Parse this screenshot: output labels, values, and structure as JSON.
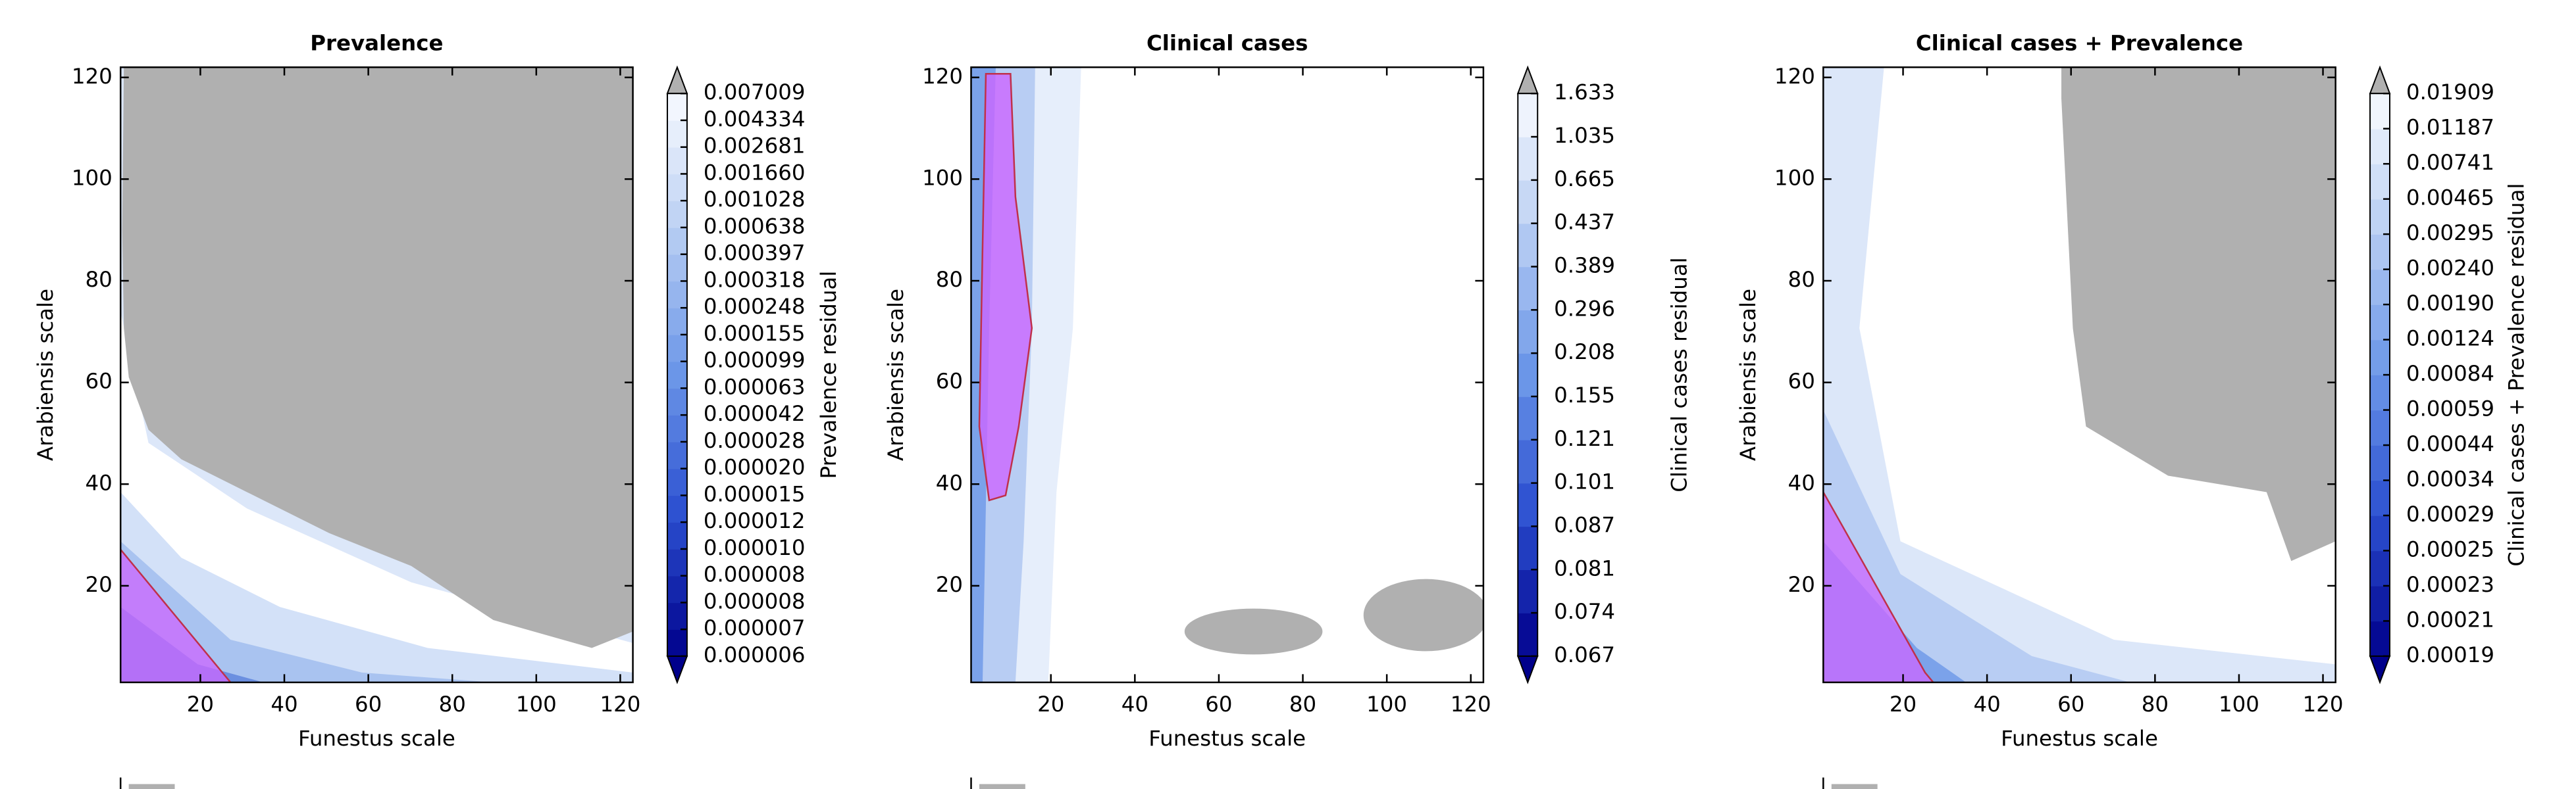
{
  "chart_data": [
    {
      "type": "contour",
      "title": "Prevalence",
      "x_label": "Funestus scale",
      "y_label": "Arabiensis scale",
      "xlim": [
        1,
        123
      ],
      "ylim": [
        1,
        122
      ],
      "xticks": [
        20,
        40,
        60,
        80,
        100,
        120
      ],
      "yticks": [
        20,
        40,
        60,
        80,
        100,
        120
      ],
      "colorbar_label": "Prevalence residual",
      "colorbar_ticks": [
        6e-06,
        7e-06,
        8e-06,
        8e-06,
        {
          "value": 1e-05,
          "label": "0.000010"
        },
        1.2e-05,
        1.5e-05,
        {
          "value": 2e-05,
          "label": "0.000020"
        },
        2.8e-05,
        4.2e-05,
        6.3e-05,
        9.9e-05,
        0.000155,
        0.000248,
        0.000318,
        0.000397,
        0.000638,
        0.001028,
        {
          "value": 0.00166,
          "label": "0.001660"
        },
        0.002681,
        0.004334,
        0.007009
      ]
    },
    {
      "type": "contour",
      "title": "Clinical cases",
      "x_label": "Funestus scale",
      "y_label": "Arabiensis scale",
      "xlim": [
        1,
        123
      ],
      "ylim": [
        1,
        122
      ],
      "xticks": [
        20,
        40,
        60,
        80,
        100,
        120
      ],
      "yticks": [
        20,
        40,
        60,
        80,
        100,
        120
      ],
      "colorbar_label": "Clinical cases residual",
      "colorbar_ticks": [
        0.067,
        0.074,
        0.081,
        0.087,
        0.101,
        0.121,
        0.155,
        0.208,
        0.296,
        0.389,
        0.437,
        0.665,
        1.035,
        1.633
      ]
    },
    {
      "type": "contour",
      "title": "Clinical cases + Prevalence",
      "x_label": "Funestus scale",
      "y_label": "Arabiensis scale",
      "xlim": [
        1,
        123
      ],
      "ylim": [
        1,
        122
      ],
      "xticks": [
        20,
        40,
        60,
        80,
        100,
        120
      ],
      "yticks": [
        20,
        40,
        60,
        80,
        100,
        120
      ],
      "colorbar_label": "Clinical cases + Prevalence residual",
      "colorbar_ticks": [
        0.00019,
        0.00021,
        0.00023,
        0.00025,
        0.00029,
        0.00034,
        0.00044,
        0.00059,
        0.00084,
        0.00124,
        {
          "value": 0.0019,
          "label": "0.00190"
        },
        {
          "value": 0.0024,
          "label": "0.00240"
        },
        0.00295,
        0.00465,
        0.00741,
        0.01187,
        0.01909
      ]
    }
  ]
}
